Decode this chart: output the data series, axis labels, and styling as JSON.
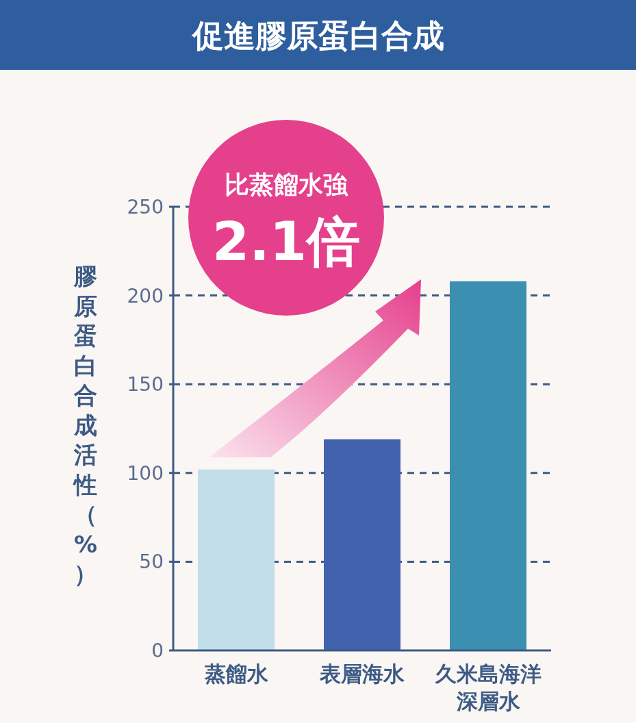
{
  "chart_data": {
    "type": "bar",
    "title": "促進膠原蛋白合成",
    "ylabel": "膠原蛋白合成活性（%）",
    "categories": [
      "蒸餾水",
      "表層海水",
      "久米島海洋深層水"
    ],
    "values": [
      102,
      119,
      208
    ],
    "colors": [
      "#c2dfe9",
      "#4262ad",
      "#3b8fb0"
    ],
    "ylim": [
      0,
      250
    ],
    "yticks": [
      0,
      50,
      100,
      150,
      200,
      250
    ],
    "grid": "y",
    "annotations": [
      "比蒸餾水強",
      "2.1倍"
    ]
  }
}
